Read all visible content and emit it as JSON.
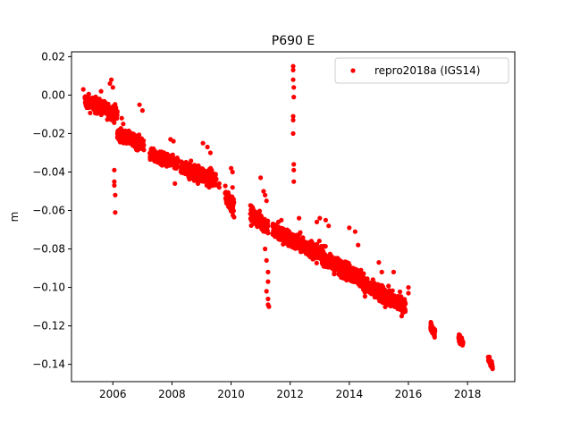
{
  "chart_data": {
    "type": "scatter",
    "title": "P690 E",
    "xlabel": "",
    "ylabel": "m",
    "xlim": [
      2004.6,
      2019.6
    ],
    "ylim": [
      -0.149,
      0.0225
    ],
    "xticks": [
      2006,
      2008,
      2010,
      2012,
      2014,
      2016,
      2018
    ],
    "yticks": [
      0.02,
      0.0,
      -0.02,
      -0.04,
      -0.06,
      -0.08,
      -0.1,
      -0.12,
      -0.14
    ],
    "ytick_labels": [
      "0.02",
      "0.00",
      "−0.02",
      "−0.04",
      "−0.06",
      "−0.08",
      "−0.10",
      "−0.12",
      "−0.14"
    ],
    "legend": {
      "position": "top-right",
      "entries": [
        "repro2018a (IGS14)"
      ]
    },
    "grid": false,
    "series": [
      {
        "name": "repro2018a (IGS14)",
        "color": "#ff0000",
        "marker": "circle",
        "segments": [
          {
            "x0": 2005.05,
            "x1": 2006.15,
            "y0": -0.003,
            "y1": -0.01,
            "noise": 0.0035
          },
          {
            "x0": 2006.15,
            "x1": 2007.05,
            "y0": -0.02,
            "y1": -0.026,
            "noise": 0.003
          },
          {
            "x0": 2007.25,
            "x1": 2008.2,
            "y0": -0.031,
            "y1": -0.036,
            "noise": 0.003
          },
          {
            "x0": 2008.3,
            "x1": 2009.5,
            "y0": -0.038,
            "y1": -0.044,
            "noise": 0.004
          },
          {
            "x0": 2009.8,
            "x1": 2010.1,
            "y0": -0.052,
            "y1": -0.058,
            "noise": 0.004
          },
          {
            "x0": 2010.65,
            "x1": 2011.25,
            "y0": -0.062,
            "y1": -0.068,
            "noise": 0.004
          },
          {
            "x0": 2011.4,
            "x1": 2012.2,
            "y0": -0.07,
            "y1": -0.077,
            "noise": 0.004
          },
          {
            "x0": 2012.2,
            "x1": 2013.2,
            "y0": -0.076,
            "y1": -0.084,
            "noise": 0.004
          },
          {
            "x0": 2013.2,
            "x1": 2014.5,
            "y0": -0.086,
            "y1": -0.096,
            "noise": 0.004
          },
          {
            "x0": 2014.5,
            "x1": 2015.9,
            "y0": -0.099,
            "y1": -0.11,
            "noise": 0.004
          },
          {
            "x0": 2016.75,
            "x1": 2016.9,
            "y0": -0.12,
            "y1": -0.124,
            "noise": 0.002
          },
          {
            "x0": 2017.7,
            "x1": 2017.85,
            "y0": -0.126,
            "y1": -0.129,
            "noise": 0.002
          },
          {
            "x0": 2018.7,
            "x1": 2018.85,
            "y0": -0.137,
            "y1": -0.141,
            "noise": 0.002
          }
        ],
        "points": [
          [
            2005.0,
            0.003
          ],
          [
            2005.6,
            0.002
          ],
          [
            2005.9,
            0.006
          ],
          [
            2005.95,
            0.008
          ],
          [
            2006.0,
            0.004
          ],
          [
            2006.05,
            -0.039
          ],
          [
            2006.05,
            -0.045
          ],
          [
            2006.05,
            -0.047
          ],
          [
            2006.08,
            -0.052
          ],
          [
            2006.08,
            -0.061
          ],
          [
            2006.3,
            -0.012
          ],
          [
            2006.35,
            -0.015
          ],
          [
            2006.9,
            -0.005
          ],
          [
            2007.0,
            -0.008
          ],
          [
            2007.95,
            -0.023
          ],
          [
            2008.05,
            -0.024
          ],
          [
            2008.1,
            -0.046
          ],
          [
            2009.05,
            -0.025
          ],
          [
            2009.2,
            -0.027
          ],
          [
            2009.3,
            -0.03
          ],
          [
            2009.6,
            -0.046
          ],
          [
            2009.6,
            -0.048
          ],
          [
            2010.0,
            -0.038
          ],
          [
            2010.05,
            -0.04
          ],
          [
            2010.05,
            -0.048
          ],
          [
            2011.0,
            -0.043
          ],
          [
            2011.1,
            -0.05
          ],
          [
            2011.15,
            -0.052
          ],
          [
            2011.2,
            -0.055
          ],
          [
            2011.15,
            -0.08
          ],
          [
            2011.2,
            -0.086
          ],
          [
            2011.25,
            -0.092
          ],
          [
            2011.25,
            -0.097
          ],
          [
            2011.2,
            -0.102
          ],
          [
            2011.25,
            -0.106
          ],
          [
            2011.25,
            -0.109
          ],
          [
            2011.28,
            -0.11
          ],
          [
            2012.1,
            0.015
          ],
          [
            2012.1,
            0.013
          ],
          [
            2012.1,
            0.008
          ],
          [
            2012.12,
            0.004
          ],
          [
            2012.12,
            -0.001
          ],
          [
            2012.1,
            -0.011
          ],
          [
            2012.1,
            -0.013
          ],
          [
            2012.1,
            -0.02
          ],
          [
            2012.12,
            -0.036
          ],
          [
            2012.12,
            -0.039
          ],
          [
            2012.12,
            -0.045
          ],
          [
            2011.6,
            -0.066
          ],
          [
            2011.7,
            -0.065
          ],
          [
            2012.3,
            -0.064
          ],
          [
            2012.9,
            -0.066
          ],
          [
            2013.0,
            -0.064
          ],
          [
            2013.2,
            -0.065
          ],
          [
            2013.3,
            -0.068
          ],
          [
            2014.0,
            -0.069
          ],
          [
            2014.2,
            -0.071
          ],
          [
            2014.3,
            -0.078
          ],
          [
            2015.0,
            -0.087
          ],
          [
            2015.1,
            -0.092
          ],
          [
            2015.5,
            -0.092
          ],
          [
            2016.0,
            -0.1
          ],
          [
            2016.0,
            -0.103
          ]
        ]
      }
    ]
  }
}
